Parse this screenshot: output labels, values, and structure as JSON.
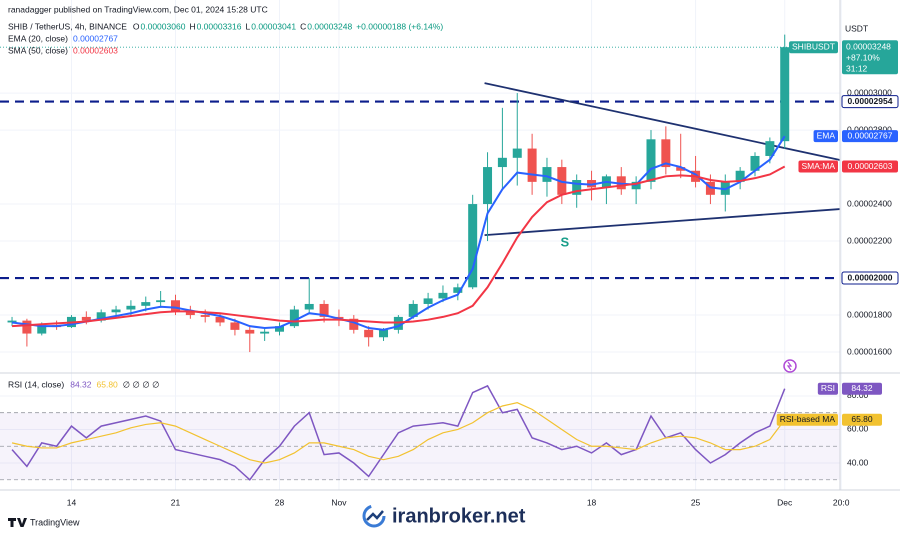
{
  "published": "ranadagger published on TradingView.com, Dec 01, 2024 15:28 UTC",
  "currency": "USDT",
  "brand": "TradingView",
  "watermark": "iranbroker.net",
  "chart_data": [
    {
      "type": "candlestick",
      "title": "SHIB / TetherUS, 4h, BINANCE",
      "ohlc": [
        {
          "key": "O",
          "value": "0.00003060"
        },
        {
          "key": "H",
          "value": "0.00003316"
        },
        {
          "key": "L",
          "value": "0.00003041"
        },
        {
          "key": "C",
          "value": "0.00003248"
        }
      ],
      "change": "+0.00000188 (+6.14%)",
      "up_color": "#26a69a",
      "down_color": "#ef5350",
      "x": [
        0,
        1,
        2,
        3,
        4,
        5,
        6,
        7,
        8,
        9,
        10,
        11,
        12,
        13,
        14,
        15,
        16,
        17,
        18,
        19,
        20,
        21,
        22,
        23,
        24,
        25,
        26,
        27,
        28,
        29,
        30,
        31,
        32,
        33,
        34,
        35,
        36,
        37,
        38,
        39,
        40,
        41,
        42,
        43,
        44,
        45,
        46,
        47,
        48,
        49,
        50,
        51,
        52
      ],
      "open": [
        1.76e-05,
        1.77e-05,
        1.7e-05,
        1.745e-05,
        1.735e-05,
        1.79e-05,
        1.77e-05,
        1.815e-05,
        1.83e-05,
        1.85e-05,
        1.87e-05,
        1.88e-05,
        1.82e-05,
        1.8e-05,
        1.79e-05,
        1.76e-05,
        1.72e-05,
        1.7e-05,
        1.71e-05,
        1.74e-05,
        1.83e-05,
        1.86e-05,
        1.79e-05,
        1.78e-05,
        1.72e-05,
        1.68e-05,
        1.72e-05,
        1.79e-05,
        1.86e-05,
        1.89e-05,
        1.92e-05,
        1.95e-05,
        2.4e-05,
        2.6e-05,
        2.65e-05,
        2.7e-05,
        2.52e-05,
        2.6e-05,
        2.45e-05,
        2.53e-05,
        2.49e-05,
        2.55e-05,
        2.48e-05,
        2.52e-05,
        2.75e-05,
        2.6e-05,
        2.58e-05,
        2.52e-05,
        2.45e-05,
        2.52e-05,
        2.58e-05,
        2.66e-05,
        2.74e-05
      ],
      "high": [
        1.79e-05,
        1.78e-05,
        1.76e-05,
        1.77e-05,
        1.8e-05,
        1.82e-05,
        1.83e-05,
        1.85e-05,
        1.88e-05,
        1.9e-05,
        1.93e-05,
        1.91e-05,
        1.85e-05,
        1.83e-05,
        1.81e-05,
        1.78e-05,
        1.74e-05,
        1.73e-05,
        1.76e-05,
        1.85e-05,
        2e-05,
        1.88e-05,
        1.83e-05,
        1.8e-05,
        1.74e-05,
        1.73e-05,
        1.8e-05,
        1.88e-05,
        1.92e-05,
        1.96e-05,
        1.97e-05,
        2.45e-05,
        2.68e-05,
        2.92e-05,
        3e-05,
        2.78e-05,
        2.65e-05,
        2.64e-05,
        2.56e-05,
        2.58e-05,
        2.56e-05,
        2.6e-05,
        2.55e-05,
        2.8e-05,
        2.82e-05,
        2.78e-05,
        2.66e-05,
        2.56e-05,
        2.56e-05,
        2.6e-05,
        2.68e-05,
        2.76e-05,
        3.316e-05
      ],
      "low": [
        1.74e-05,
        1.63e-05,
        1.69e-05,
        1.72e-05,
        1.73e-05,
        1.75e-05,
        1.76e-05,
        1.79e-05,
        1.8e-05,
        1.82e-05,
        1.84e-05,
        1.8e-05,
        1.78e-05,
        1.76e-05,
        1.74e-05,
        1.69e-05,
        1.6e-05,
        1.66e-05,
        1.69e-05,
        1.73e-05,
        1.81e-05,
        1.76e-05,
        1.74e-05,
        1.7e-05,
        1.63e-05,
        1.66e-05,
        1.7e-05,
        1.78e-05,
        1.83e-05,
        1.87e-05,
        1.88e-05,
        1.94e-05,
        2.2e-05,
        2.48e-05,
        2.5e-05,
        2.45e-05,
        2.44e-05,
        2.4e-05,
        2.38e-05,
        2.42e-05,
        2.4e-05,
        2.45e-05,
        2.4e-05,
        2.48e-05,
        2.56e-05,
        2.54e-05,
        2.49e-05,
        2.4e-05,
        2.36e-05,
        2.48e-05,
        2.55e-05,
        2.62e-05,
        2.7e-05
      ],
      "close": [
        1.77e-05,
        1.7e-05,
        1.745e-05,
        1.735e-05,
        1.79e-05,
        1.77e-05,
        1.815e-05,
        1.83e-05,
        1.85e-05,
        1.87e-05,
        1.88e-05,
        1.82e-05,
        1.8e-05,
        1.79e-05,
        1.76e-05,
        1.72e-05,
        1.7e-05,
        1.71e-05,
        1.74e-05,
        1.83e-05,
        1.86e-05,
        1.79e-05,
        1.78e-05,
        1.72e-05,
        1.68e-05,
        1.72e-05,
        1.79e-05,
        1.86e-05,
        1.89e-05,
        1.92e-05,
        1.95e-05,
        2.4e-05,
        2.6e-05,
        2.65e-05,
        2.7e-05,
        2.52e-05,
        2.6e-05,
        2.45e-05,
        2.53e-05,
        2.49e-05,
        2.55e-05,
        2.48e-05,
        2.52e-05,
        2.75e-05,
        2.6e-05,
        2.58e-05,
        2.52e-05,
        2.45e-05,
        2.52e-05,
        2.58e-05,
        2.66e-05,
        2.74e-05,
        3.248e-05
      ],
      "series": [
        {
          "name": "EMA (20, close)",
          "tag": "EMA",
          "legend_value": "0.00002767",
          "color": "#2962ff",
          "values": [
            1.76e-05,
            1.75e-05,
            1.74e-05,
            1.74e-05,
            1.75e-05,
            1.765e-05,
            1.78e-05,
            1.795e-05,
            1.81e-05,
            1.83e-05,
            1.845e-05,
            1.84e-05,
            1.825e-05,
            1.81e-05,
            1.795e-05,
            1.77e-05,
            1.74e-05,
            1.73e-05,
            1.735e-05,
            1.77e-05,
            1.81e-05,
            1.8e-05,
            1.78e-05,
            1.76e-05,
            1.73e-05,
            1.72e-05,
            1.74e-05,
            1.79e-05,
            1.84e-05,
            1.88e-05,
            1.91e-05,
            2.05e-05,
            2.35e-05,
            2.48e-05,
            2.57e-05,
            2.56e-05,
            2.55e-05,
            2.52e-05,
            2.51e-05,
            2.505e-05,
            2.52e-05,
            2.51e-05,
            2.505e-05,
            2.59e-05,
            2.62e-05,
            2.6e-05,
            2.56e-05,
            2.49e-05,
            2.48e-05,
            2.52e-05,
            2.58e-05,
            2.64e-05,
            2.767e-05
          ]
        },
        {
          "name": "SMA (50, close)",
          "tag": "SMA:MA",
          "legend_value": "0.00002603",
          "color": "#f23645",
          "values": [
            1.74e-05,
            1.745e-05,
            1.75e-05,
            1.755e-05,
            1.76e-05,
            1.765e-05,
            1.775e-05,
            1.785e-05,
            1.795e-05,
            1.805e-05,
            1.815e-05,
            1.82e-05,
            1.82e-05,
            1.815e-05,
            1.81e-05,
            1.8e-05,
            1.79e-05,
            1.78e-05,
            1.77e-05,
            1.765e-05,
            1.77e-05,
            1.775e-05,
            1.775e-05,
            1.77e-05,
            1.765e-05,
            1.76e-05,
            1.76e-05,
            1.765e-05,
            1.775e-05,
            1.79e-05,
            1.81e-05,
            1.85e-05,
            1.95e-05,
            2.08e-05,
            2.22e-05,
            2.33e-05,
            2.41e-05,
            2.45e-05,
            2.47e-05,
            2.48e-05,
            2.49e-05,
            2.5e-05,
            2.51e-05,
            2.53e-05,
            2.55e-05,
            2.555e-05,
            2.55e-05,
            2.53e-05,
            2.52e-05,
            2.525e-05,
            2.54e-05,
            2.56e-05,
            2.603e-05
          ]
        }
      ],
      "last_price": {
        "value": 3.248e-05,
        "symbol": "SHIBUSDT",
        "label": "0.00003248",
        "change": "+87.10%",
        "countdown": "31:12",
        "color": "#26a69a"
      },
      "levels": [
        {
          "value": 2.954e-05,
          "label": "0.00002954"
        },
        {
          "value": 2e-05,
          "label": "0.00002000"
        }
      ],
      "level_color": "#0c1d8c",
      "trendlines": [
        {
          "x": [
            31.8,
            55.72
          ],
          "y": [
            3.054e-05,
            2.638e-05
          ]
        },
        {
          "x": [
            31.8,
            55.72
          ],
          "y": [
            2.232e-05,
            2.373e-05
          ]
        }
      ],
      "trendline_color": "#1e3170",
      "annotations": [
        {
          "text": "S",
          "x": 37.2,
          "y": 2.189e-05,
          "color": "#1a9e8a"
        }
      ],
      "xlim": [
        -0.81,
        55.72
      ],
      "xticks": [
        {
          "value": 4,
          "label": "14"
        },
        {
          "value": 11,
          "label": "21"
        },
        {
          "value": 18,
          "label": "28"
        },
        {
          "value": 22,
          "label": "Nov"
        },
        {
          "value": 39,
          "label": "18"
        },
        {
          "value": 46,
          "label": "25"
        },
        {
          "value": 52,
          "label": "Dec"
        },
        {
          "value": 55.8,
          "label": "20:0"
        }
      ],
      "ylim": [
        1.503e-05,
        3.422e-05
      ],
      "yticks": [
        {
          "value": 3e-05,
          "label": "0.00003000"
        },
        {
          "value": 2.8e-05,
          "label": "0.00002800"
        },
        {
          "value": 2.4e-05,
          "label": "0.00002400"
        },
        {
          "value": 2.2e-05,
          "label": "0.00002200"
        },
        {
          "value": 1.8e-05,
          "label": "0.00001800"
        },
        {
          "value": 1.6e-05,
          "label": "0.00001600"
        }
      ],
      "grid": true
    },
    {
      "type": "line",
      "title": "RSI (14, close)",
      "extra": "∅ ∅ ∅ ∅",
      "series": [
        {
          "name": "RSI",
          "legend_value": "84.32",
          "color": "#7e57c2",
          "values": [
            48,
            38,
            52,
            50,
            62,
            55,
            62,
            64,
            66,
            68,
            65,
            48,
            46,
            44,
            42,
            38,
            30,
            42,
            50,
            62,
            70,
            45,
            46,
            40,
            32,
            45,
            58,
            62,
            63,
            64,
            62,
            82,
            86,
            70,
            72,
            55,
            52,
            48,
            50,
            46,
            52,
            45,
            48,
            68,
            55,
            58,
            48,
            40,
            45,
            52,
            58,
            62,
            84.32
          ]
        },
        {
          "name": "RSI-based MA",
          "legend_value": "65.80",
          "color": "#f2c230",
          "values": [
            52,
            50,
            49,
            49,
            52,
            54,
            56,
            58,
            61,
            63,
            64,
            62,
            58,
            54,
            50,
            46,
            42,
            40,
            42,
            46,
            52,
            52,
            50,
            48,
            44,
            42,
            44,
            48,
            54,
            58,
            60,
            64,
            70,
            74,
            76,
            72,
            66,
            60,
            54,
            50,
            50,
            49,
            48,
            52,
            55,
            56,
            55,
            52,
            48,
            48,
            50,
            54,
            65.8
          ]
        }
      ],
      "levels": [
        70,
        50,
        30
      ],
      "band_color": "#7e57c2",
      "ylim": [
        23.9,
        90.7
      ],
      "yticks": [
        {
          "value": 80,
          "label": "80.00"
        },
        {
          "value": 60,
          "label": "60.00"
        },
        {
          "value": 40,
          "label": "40.00"
        }
      ]
    }
  ]
}
